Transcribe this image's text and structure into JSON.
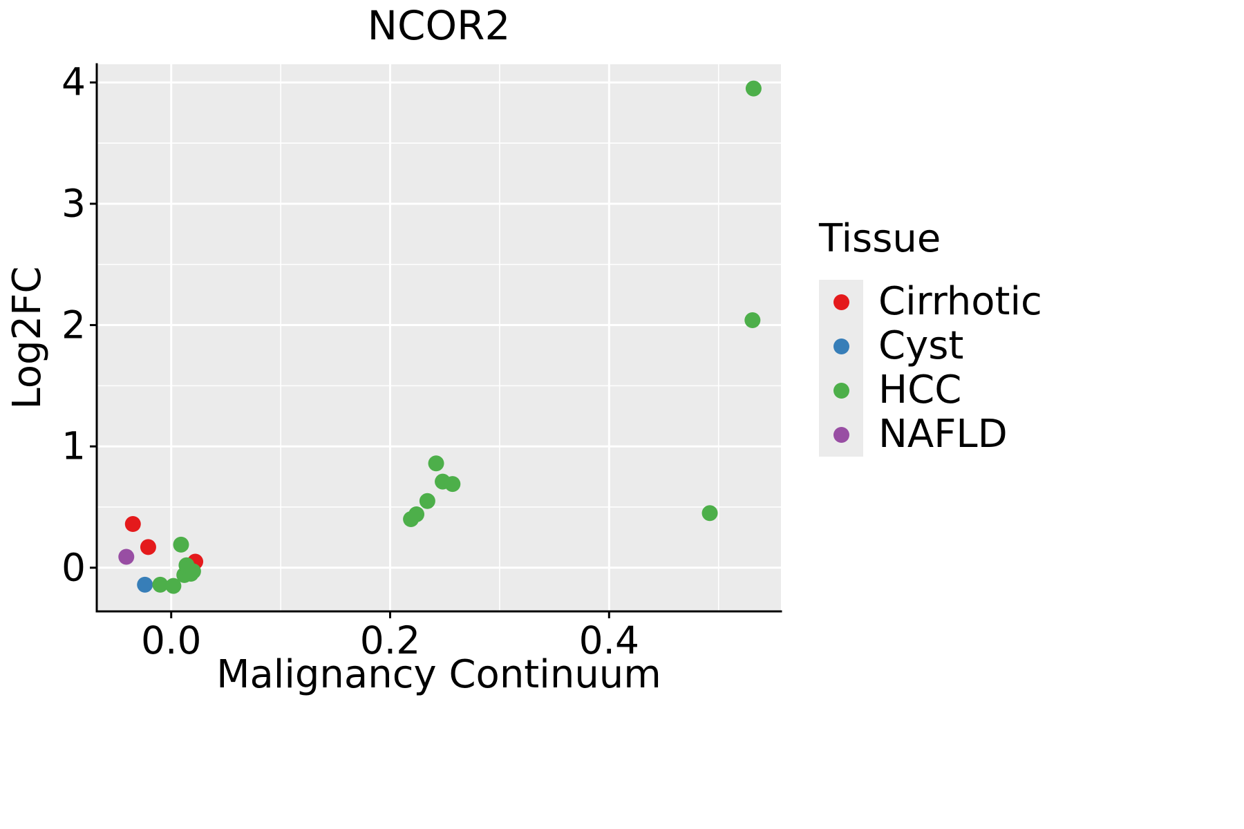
{
  "chart_data": {
    "type": "scatter",
    "title": "NCOR2",
    "xlabel": "Malignancy Continuum",
    "ylabel": "Log2FC",
    "xlim": [
      -0.068,
      0.557
    ],
    "ylim": [
      -0.36,
      4.15
    ],
    "x_major_ticks": [
      0.0,
      0.2,
      0.4
    ],
    "x_tick_labels": [
      "0.0",
      "0.2",
      "0.4"
    ],
    "x_minor_ticks": [
      0.1,
      0.3,
      0.5
    ],
    "y_major_ticks": [
      0,
      1,
      2,
      3,
      4
    ],
    "y_tick_labels": [
      "0",
      "1",
      "2",
      "3",
      "4"
    ],
    "y_minor_ticks": [
      0.5,
      1.5,
      2.5,
      3.5
    ],
    "grid": true,
    "panel_bg": "#EBEBEB",
    "grid_color": "#FFFFFF",
    "axis_color": "#000000",
    "legend": {
      "title": "Tissue",
      "position": "right",
      "entries": [
        {
          "label": "Cirrhotic",
          "color": "#E41A1C"
        },
        {
          "label": "Cyst",
          "color": "#377EB8"
        },
        {
          "label": "HCC",
          "color": "#4DAF4A"
        },
        {
          "label": "NAFLD",
          "color": "#984EA3"
        }
      ]
    },
    "series": [
      {
        "name": "Cirrhotic",
        "color": "#E41A1C",
        "points": [
          [
            -0.035,
            0.36
          ],
          [
            -0.021,
            0.17
          ],
          [
            0.022,
            0.05
          ]
        ]
      },
      {
        "name": "Cyst",
        "color": "#377EB8",
        "points": [
          [
            -0.024,
            -0.14
          ]
        ]
      },
      {
        "name": "HCC",
        "color": "#4DAF4A",
        "points": [
          [
            -0.01,
            -0.14
          ],
          [
            0.002,
            -0.15
          ],
          [
            0.009,
            0.19
          ],
          [
            0.012,
            -0.06
          ],
          [
            0.014,
            0.02
          ],
          [
            0.016,
            -0.01
          ],
          [
            0.018,
            -0.05
          ],
          [
            0.02,
            -0.03
          ],
          [
            0.219,
            0.4
          ],
          [
            0.224,
            0.44
          ],
          [
            0.234,
            0.55
          ],
          [
            0.242,
            0.86
          ],
          [
            0.248,
            0.71
          ],
          [
            0.257,
            0.69
          ],
          [
            0.492,
            0.45
          ],
          [
            0.531,
            2.04
          ],
          [
            0.532,
            3.95
          ]
        ]
      },
      {
        "name": "NAFLD",
        "color": "#984EA3",
        "points": [
          [
            -0.041,
            0.09
          ]
        ]
      }
    ]
  }
}
